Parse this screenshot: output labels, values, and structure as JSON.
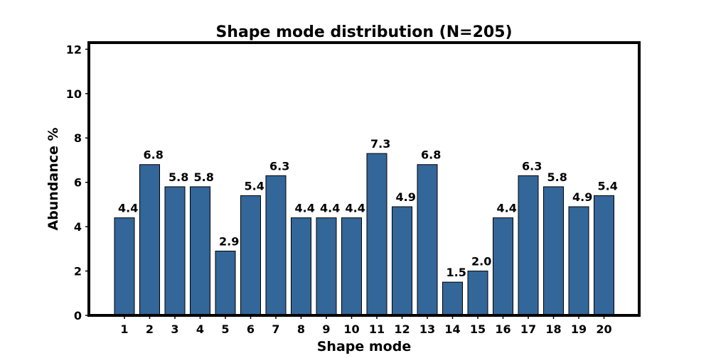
{
  "chart_data": {
    "type": "bar",
    "title": "Shape mode distribution (N=205)",
    "xlabel": "Shape mode",
    "ylabel": "Abundance %",
    "categories": [
      "1",
      "2",
      "3",
      "4",
      "5",
      "6",
      "7",
      "8",
      "9",
      "10",
      "11",
      "12",
      "13",
      "14",
      "15",
      "16",
      "17",
      "18",
      "19",
      "20"
    ],
    "values": [
      4.4,
      6.8,
      5.8,
      5.8,
      2.9,
      5.4,
      6.3,
      4.4,
      4.4,
      4.4,
      7.3,
      4.9,
      6.8,
      1.5,
      2.0,
      4.4,
      6.3,
      5.8,
      4.9,
      5.4
    ],
    "value_labels": [
      "4.4",
      "6.8",
      "5.8",
      "5.8",
      "2.9",
      "5.4",
      "6.3",
      "4.4",
      "4.4",
      "4.4",
      "7.3",
      "4.9",
      "6.8",
      "1.5",
      "2.0",
      "4.4",
      "6.3",
      "5.8",
      "4.9",
      "5.4"
    ],
    "ylim": [
      0,
      12.3
    ],
    "yticks": [
      0,
      2,
      4,
      6,
      8,
      10,
      12
    ],
    "grid": false,
    "legend": "none",
    "colors": {
      "bar_fill": "#336699",
      "bar_edge": "#000000",
      "frame": "#000000"
    }
  }
}
